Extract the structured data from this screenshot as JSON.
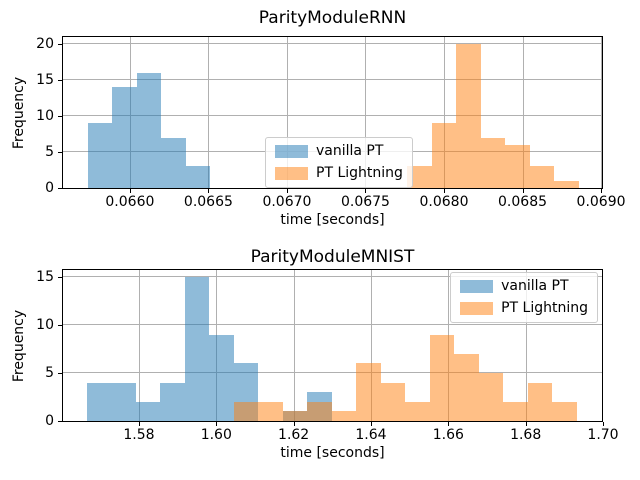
{
  "colors": {
    "vanilla_pt_fill": "rgba(31,119,180,0.5)",
    "pt_lightning_fill": "rgba(255,127,14,0.5)",
    "vanilla_pt_base": "#1f77b4",
    "pt_lightning_base": "#ff7f0e",
    "overlap_blend": "#c79d74",
    "grid": "#b0b0b0",
    "spine": "#000000",
    "legend_border": "#cccccc"
  },
  "chart_data": [
    {
      "type": "bar",
      "subtype": "histogram",
      "title": "ParityModuleRNN",
      "xlabel": "time [seconds]",
      "ylabel": "Frequency",
      "xlim": [
        0.065574,
        0.069006
      ],
      "ylim": [
        0,
        21
      ],
      "grid": true,
      "xticks": [
        0.066,
        0.0665,
        0.067,
        0.0675,
        0.068,
        0.0685,
        0.069
      ],
      "xtick_labels": [
        "0.0660",
        "0.0665",
        "0.0670",
        "0.0675",
        "0.0680",
        "0.0685",
        "0.0690"
      ],
      "yticks": [
        0,
        5,
        10,
        15,
        20
      ],
      "ytick_labels": [
        "0",
        "5",
        "10",
        "15",
        "20"
      ],
      "legend_position": "center",
      "series": [
        {
          "name": "vanilla PT",
          "color": "rgba(31,119,180,0.5)",
          "bin_edges": [
            0.065732,
            0.065888,
            0.066044,
            0.0662,
            0.066356,
            0.066512
          ],
          "counts": [
            9,
            14,
            16,
            7,
            3
          ]
        },
        {
          "name": "PT Lightning",
          "color": "rgba(255,127,14,0.5)",
          "bin_edges": [
            0.067766,
            0.067922,
            0.068078,
            0.068234,
            0.06839,
            0.068546,
            0.068702,
            0.068858
          ],
          "counts": [
            3,
            9,
            20,
            7,
            6,
            3,
            1
          ]
        }
      ],
      "legend": [
        {
          "label": "vanilla PT",
          "color": "rgba(31,119,180,0.5)"
        },
        {
          "label": "PT Lightning",
          "color": "rgba(255,127,14,0.5)"
        }
      ]
    },
    {
      "type": "bar",
      "subtype": "histogram",
      "title": "ParityModuleMNIST",
      "xlabel": "time [seconds]",
      "ylabel": "Frequency",
      "xlim": [
        1.56036,
        1.69974
      ],
      "ylim": [
        0,
        15.75
      ],
      "grid": true,
      "xticks": [
        1.58,
        1.6,
        1.62,
        1.64,
        1.66,
        1.68,
        1.7
      ],
      "xtick_labels": [
        "1.58",
        "1.60",
        "1.62",
        "1.64",
        "1.66",
        "1.68",
        "1.70"
      ],
      "yticks": [
        0,
        5,
        10,
        15
      ],
      "ytick_labels": [
        "0",
        "5",
        "10",
        "15"
      ],
      "legend_position": "upper right",
      "series": [
        {
          "name": "vanilla PT",
          "color": "rgba(31,119,180,0.5)",
          "bin_edges": [
            1.56654,
            1.57287,
            1.5792,
            1.58553,
            1.59186,
            1.59819,
            1.60452,
            1.61085,
            1.61718,
            1.62351,
            1.62984
          ],
          "counts": [
            4,
            4,
            2,
            4,
            15,
            9,
            6,
            0,
            1,
            3
          ]
        },
        {
          "name": "PT Lightning",
          "color": "rgba(255,127,14,0.5)",
          "bin_edges": [
            1.60457,
            1.6109,
            1.61723,
            1.62356,
            1.62989,
            1.63622,
            1.64255,
            1.64888,
            1.65521,
            1.66154,
            1.66787,
            1.6742,
            1.68053,
            1.68686,
            1.69319
          ],
          "counts": [
            2,
            2,
            1,
            2,
            1,
            6,
            4,
            2,
            9,
            7,
            5,
            2,
            4,
            2
          ]
        }
      ],
      "legend": [
        {
          "label": "vanilla PT",
          "color": "rgba(31,119,180,0.5)"
        },
        {
          "label": "PT Lightning",
          "color": "rgba(255,127,14,0.5)"
        }
      ]
    }
  ]
}
